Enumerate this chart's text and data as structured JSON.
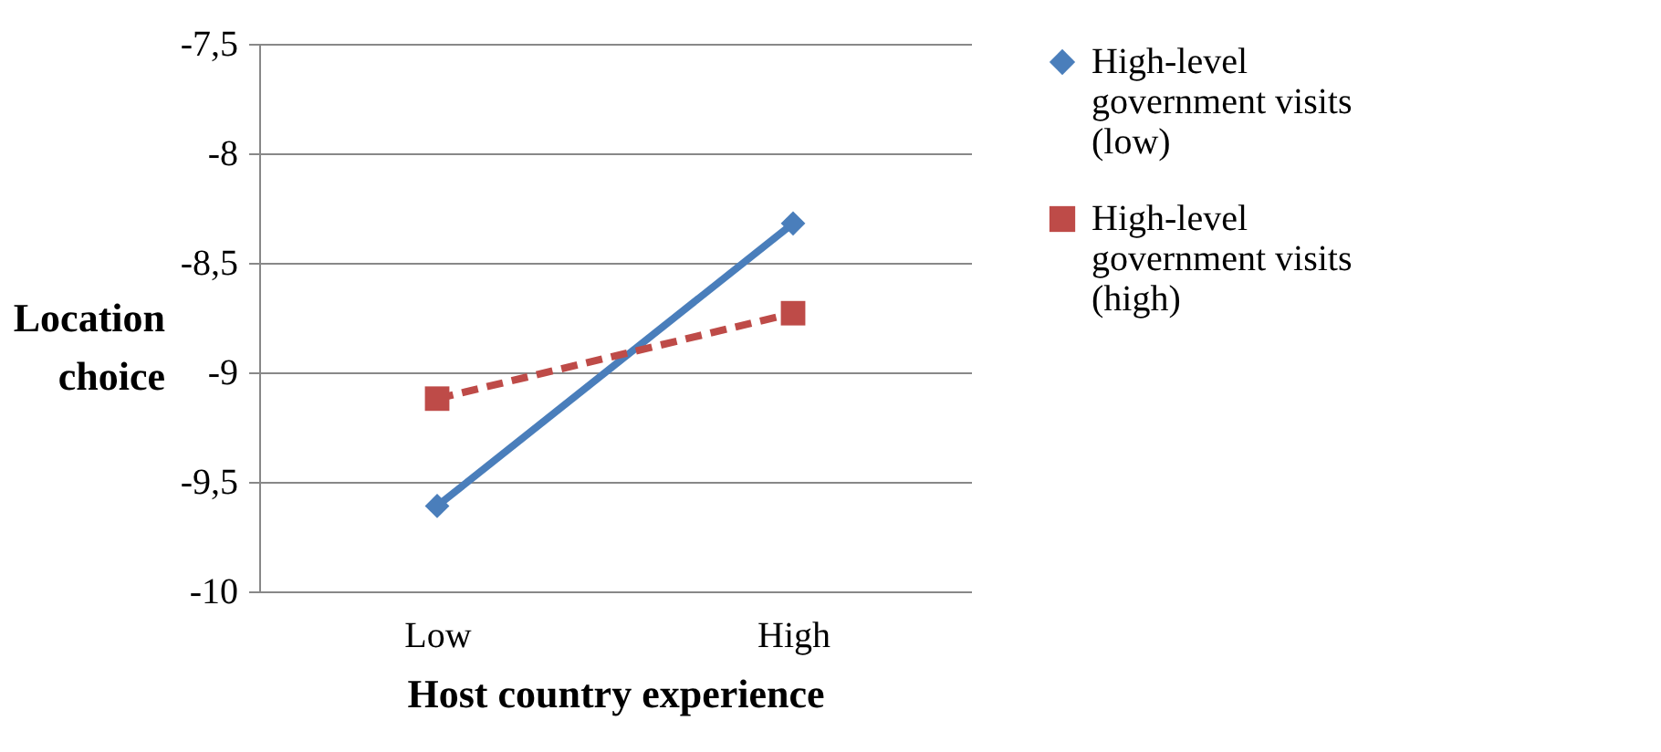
{
  "chart_data": {
    "type": "line",
    "xlabel": "Host country experience",
    "ylabel": "Location choice",
    "categories": [
      "Low",
      "High"
    ],
    "series": [
      {
        "name": "High-level government visits (low)",
        "color": "#4a7ebb",
        "values": [
          -9.61,
          -8.32
        ],
        "marker": "diamond",
        "line_style": "solid"
      },
      {
        "name": "High-level government visits (high)",
        "color": "#be4b48",
        "values": [
          -9.12,
          -8.73
        ],
        "marker": "square",
        "line_style": "dashed"
      }
    ],
    "ylim": [
      -10,
      -7.5
    ],
    "yticks": [
      {
        "value": -10,
        "label": "-10"
      },
      {
        "value": -9.5,
        "label": "-9,5"
      },
      {
        "value": -9,
        "label": "-9"
      },
      {
        "value": -8.5,
        "label": "-8,5"
      },
      {
        "value": -8,
        "label": "-8"
      },
      {
        "value": -7.5,
        "label": "-7,5"
      }
    ],
    "grid": "y",
    "legend": "right"
  }
}
